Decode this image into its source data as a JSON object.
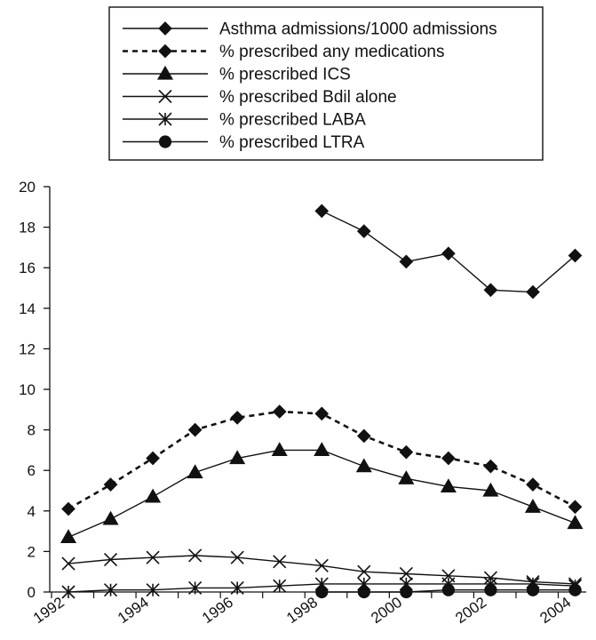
{
  "chart_data": {
    "type": "line",
    "title": "",
    "xlabel": "",
    "ylabel": "",
    "ylim": [
      0,
      20
    ],
    "y_ticks": [
      0,
      2,
      4,
      6,
      8,
      10,
      12,
      14,
      16,
      18,
      20
    ],
    "x_range": [
      1992,
      2004.6
    ],
    "x_ticks": [
      1992,
      1994,
      1996,
      1998,
      2000,
      2002,
      2004
    ],
    "x_tick_labels": [
      "1992",
      "1994",
      "1996",
      "1998",
      "2000",
      "2002",
      "2004"
    ],
    "grid": false,
    "legend_position": "top",
    "series": [
      {
        "name": "Asthma admissions/1000 admissions",
        "marker": "diamond",
        "line": "solid",
        "points": [
          [
            1998.4,
            18.8
          ],
          [
            1999.4,
            17.8
          ],
          [
            2000.4,
            16.3
          ],
          [
            2001.4,
            16.7
          ],
          [
            2002.4,
            14.9
          ],
          [
            2003.4,
            14.8
          ],
          [
            2004.4,
            16.6
          ]
        ]
      },
      {
        "name": "% prescribed any medications",
        "marker": "diamond",
        "line": "dotted",
        "points": [
          [
            1992.4,
            4.1
          ],
          [
            1993.4,
            5.3
          ],
          [
            1994.4,
            6.6
          ],
          [
            1995.4,
            8.0
          ],
          [
            1996.4,
            8.6
          ],
          [
            1997.4,
            8.9
          ],
          [
            1998.4,
            8.8
          ],
          [
            1999.4,
            7.7
          ],
          [
            2000.4,
            6.9
          ],
          [
            2001.4,
            6.6
          ],
          [
            2002.4,
            6.2
          ],
          [
            2003.4,
            5.3
          ],
          [
            2004.4,
            4.2
          ]
        ]
      },
      {
        "name": "% prescribed ICS",
        "marker": "triangle",
        "line": "solid",
        "points": [
          [
            1992.4,
            2.7
          ],
          [
            1993.4,
            3.6
          ],
          [
            1994.4,
            4.7
          ],
          [
            1995.4,
            5.9
          ],
          [
            1996.4,
            6.6
          ],
          [
            1997.4,
            7.0
          ],
          [
            1998.4,
            7.0
          ],
          [
            1999.4,
            6.2
          ],
          [
            2000.4,
            5.6
          ],
          [
            2001.4,
            5.2
          ],
          [
            2002.4,
            5.0
          ],
          [
            2003.4,
            4.2
          ],
          [
            2004.4,
            3.4
          ]
        ]
      },
      {
        "name": "% prescribed Bdil alone",
        "marker": "x",
        "line": "solid",
        "points": [
          [
            1992.4,
            1.4
          ],
          [
            1993.4,
            1.6
          ],
          [
            1994.4,
            1.7
          ],
          [
            1995.4,
            1.8
          ],
          [
            1996.4,
            1.7
          ],
          [
            1997.4,
            1.5
          ],
          [
            1998.4,
            1.3
          ],
          [
            1999.4,
            1.0
          ],
          [
            2000.4,
            0.9
          ],
          [
            2001.4,
            0.8
          ],
          [
            2002.4,
            0.7
          ],
          [
            2003.4,
            0.5
          ],
          [
            2004.4,
            0.4
          ]
        ]
      },
      {
        "name": "% prescribed LABA",
        "marker": "asterisk",
        "line": "solid",
        "points": [
          [
            1992.4,
            0.0
          ],
          [
            1993.4,
            0.1
          ],
          [
            1994.4,
            0.1
          ],
          [
            1995.4,
            0.2
          ],
          [
            1996.4,
            0.2
          ],
          [
            1997.4,
            0.3
          ],
          [
            1998.4,
            0.4
          ],
          [
            1999.4,
            0.4
          ],
          [
            2000.4,
            0.4
          ],
          [
            2001.4,
            0.4
          ],
          [
            2002.4,
            0.4
          ],
          [
            2003.4,
            0.4
          ],
          [
            2004.4,
            0.3
          ]
        ]
      },
      {
        "name": "% prescribed LTRA",
        "marker": "circle",
        "line": "solid",
        "points": [
          [
            1998.4,
            0.0
          ],
          [
            1999.4,
            0.0
          ],
          [
            2000.4,
            0.0
          ],
          [
            2001.4,
            0.1
          ],
          [
            2002.4,
            0.1
          ],
          [
            2003.4,
            0.1
          ],
          [
            2004.4,
            0.1
          ]
        ]
      }
    ]
  }
}
